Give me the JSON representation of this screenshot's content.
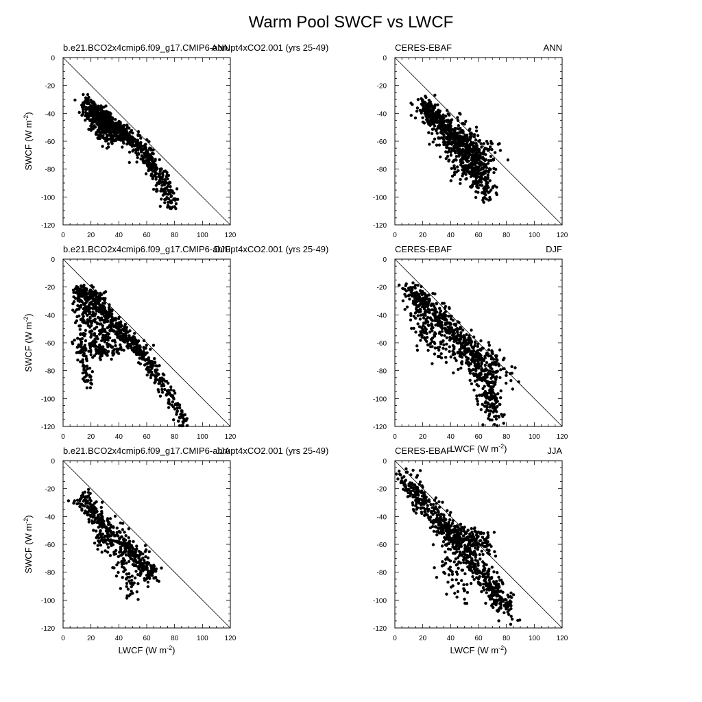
{
  "figure": {
    "title": "Warm Pool SWCF vs LWCF"
  },
  "axes_labels": {
    "x_main": "LWCF (W m",
    "y_main": "SWCF (W m",
    "exp": "-2",
    "close": ")"
  },
  "chart_data": [
    {
      "type": "scatter",
      "panel": "model-ann",
      "left_title": "b.e21.BCO2x4cmip6.f09_g17.CMIP6-abrupt4xCO2.001 (yrs 25-49)",
      "right_title": "ANN",
      "xlim": [
        0,
        120
      ],
      "ylim": [
        -120,
        0
      ],
      "xticks": [
        "0",
        "20",
        "40",
        "60",
        "80",
        "100",
        "120"
      ],
      "yticks": [
        "0",
        "-20",
        "-40",
        "-60",
        "-80",
        "-100",
        "-120"
      ],
      "reference_line": "y = -x",
      "x_label": false,
      "y_label": true,
      "clusters": [
        {
          "curve": [
            [
              16,
              -32
            ],
            [
              22,
              -38
            ],
            [
              30,
              -44
            ],
            [
              40,
              -52
            ],
            [
              50,
              -60
            ],
            [
              60,
              -72
            ],
            [
              70,
              -86
            ],
            [
              78,
              -106
            ]
          ],
          "spread": 3.0,
          "n": 650
        },
        {
          "curve": [
            [
              20,
              -40
            ],
            [
              28,
              -47
            ],
            [
              36,
              -52
            ],
            [
              45,
              -57
            ]
          ],
          "spread": 3.0,
          "n": 250
        },
        {
          "curve": [
            [
              24,
              -52
            ],
            [
              30,
              -58
            ],
            [
              40,
              -56
            ]
          ],
          "spread": 3.5,
          "n": 60
        }
      ]
    },
    {
      "type": "scatter",
      "panel": "obs-ann",
      "left_title": "CERES-EBAF",
      "right_title": "ANN",
      "xlim": [
        0,
        120
      ],
      "ylim": [
        -120,
        0
      ],
      "xticks": [
        "0",
        "20",
        "40",
        "60",
        "80",
        "100",
        "120"
      ],
      "yticks": [
        "0",
        "-20",
        "-40",
        "-60",
        "-80",
        "-100",
        "-120"
      ],
      "reference_line": "y = -x",
      "x_label": false,
      "y_label": false,
      "clusters": [
        {
          "curve": [
            [
              20,
              -35
            ],
            [
              26,
              -40
            ],
            [
              34,
              -48
            ],
            [
              42,
              -56
            ],
            [
              50,
              -64
            ],
            [
              56,
              -72
            ],
            [
              62,
              -82
            ],
            [
              66,
              -100
            ]
          ],
          "spread": 4.0,
          "n": 650
        },
        {
          "curve": [
            [
              30,
              -50
            ],
            [
              40,
              -62
            ],
            [
              48,
              -76
            ],
            [
              55,
              -86
            ]
          ],
          "spread": 5.0,
          "n": 150
        },
        {
          "curve": [
            [
              50,
              -55
            ],
            [
              60,
              -62
            ],
            [
              68,
              -70
            ]
          ],
          "spread": 5.5,
          "n": 90
        }
      ]
    },
    {
      "type": "scatter",
      "panel": "model-djf",
      "left_title": "b.e21.BCO2x4cmip6.f09_g17.CMIP6-abrupt4xCO2.001 (yrs 25-49)",
      "right_title": "DJF",
      "xlim": [
        0,
        120
      ],
      "ylim": [
        -120,
        0
      ],
      "xticks": [
        "0",
        "20",
        "40",
        "60",
        "80",
        "100",
        "120"
      ],
      "yticks": [
        "0",
        "-20",
        "-40",
        "-60",
        "-80",
        "-100",
        "-120"
      ],
      "reference_line": "y = -x",
      "x_label": false,
      "y_label": true,
      "clusters": [
        {
          "curve": [
            [
              10,
              -24
            ],
            [
              16,
              -23
            ],
            [
              24,
              -28
            ],
            [
              32,
              -38
            ],
            [
              40,
              -50
            ],
            [
              50,
              -60
            ],
            [
              58,
              -70
            ],
            [
              66,
              -82
            ],
            [
              76,
              -98
            ],
            [
              88,
              -118
            ]
          ],
          "spread": 2.5,
          "n": 520
        },
        {
          "curve": [
            [
              10,
              -28
            ],
            [
              12,
              -44
            ],
            [
              14,
              -62
            ],
            [
              16,
              -78
            ],
            [
              18,
              -92
            ]
          ],
          "spread": 2.0,
          "n": 90
        },
        {
          "curve": [
            [
              14,
              -30
            ],
            [
              18,
              -45
            ],
            [
              22,
              -60
            ],
            [
              26,
              -70
            ]
          ],
          "spread": 2.0,
          "n": 80
        },
        {
          "curve": [
            [
              18,
              -30
            ],
            [
              24,
              -45
            ],
            [
              30,
              -58
            ],
            [
              36,
              -64
            ]
          ],
          "spread": 2.0,
          "n": 80
        },
        {
          "curve": [
            [
              24,
              -32
            ],
            [
              32,
              -48
            ],
            [
              40,
              -56
            ],
            [
              48,
              -62
            ]
          ],
          "spread": 2.0,
          "n": 70
        },
        {
          "curve": [
            [
              10,
              -62
            ],
            [
              20,
              -66
            ],
            [
              30,
              -66
            ],
            [
              40,
              -66
            ]
          ],
          "spread": 2.5,
          "n": 70
        }
      ]
    },
    {
      "type": "scatter",
      "panel": "obs-djf",
      "left_title": "CERES-EBAF",
      "right_title": "DJF",
      "xlim": [
        0,
        120
      ],
      "ylim": [
        -120,
        0
      ],
      "xticks": [
        "0",
        "20",
        "40",
        "60",
        "80",
        "100",
        "120"
      ],
      "yticks": [
        "0",
        "-20",
        "-40",
        "-60",
        "-80",
        "-100",
        "-120"
      ],
      "reference_line": "y = -x",
      "x_label": true,
      "y_label": false,
      "clusters": [
        {
          "curve": [
            [
              10,
              -22
            ],
            [
              20,
              -30
            ],
            [
              30,
              -40
            ],
            [
              40,
              -50
            ],
            [
              50,
              -60
            ],
            [
              58,
              -72
            ],
            [
              64,
              -85
            ],
            [
              68,
              -100
            ],
            [
              72,
              -115
            ]
          ],
          "spread": 4.0,
          "n": 620
        },
        {
          "curve": [
            [
              15,
              -30
            ],
            [
              20,
              -45
            ],
            [
              25,
              -60
            ]
          ],
          "spread": 4.5,
          "n": 90
        },
        {
          "curve": [
            [
              55,
              -65
            ],
            [
              65,
              -72
            ],
            [
              75,
              -80
            ],
            [
              80,
              -84
            ]
          ],
          "spread": 5.0,
          "n": 110
        },
        {
          "curve": [
            [
              30,
              -60
            ],
            [
              40,
              -68
            ],
            [
              50,
              -75
            ]
          ],
          "spread": 5.0,
          "n": 60
        }
      ]
    },
    {
      "type": "scatter",
      "panel": "model-jja",
      "left_title": "b.e21.BCO2x4cmip6.f09_g17.CMIP6-abrupt4xCO2.001 (yrs 25-49)",
      "right_title": "JJA",
      "xlim": [
        0,
        120
      ],
      "ylim": [
        -120,
        0
      ],
      "xticks": [
        "0",
        "20",
        "40",
        "60",
        "80",
        "100",
        "120"
      ],
      "yticks": [
        "0",
        "-20",
        "-40",
        "-60",
        "-80",
        "-100",
        "-120"
      ],
      "reference_line": "y = -x",
      "x_label": true,
      "y_label": true,
      "clusters": [
        {
          "curve": [
            [
              12,
              -26
            ],
            [
              18,
              -32
            ],
            [
              26,
              -42
            ],
            [
              34,
              -50
            ],
            [
              42,
              -58
            ],
            [
              50,
              -66
            ],
            [
              58,
              -76
            ],
            [
              64,
              -82
            ]
          ],
          "spread": 3.5,
          "n": 420
        },
        {
          "curve": [
            [
              24,
              -50
            ],
            [
              32,
              -60
            ],
            [
              40,
              -72
            ],
            [
              46,
              -84
            ],
            [
              48,
              -100
            ]
          ],
          "spread": 3.5,
          "n": 90
        }
      ]
    },
    {
      "type": "scatter",
      "panel": "obs-jja",
      "left_title": "CERES-EBAF",
      "right_title": "JJA",
      "xlim": [
        0,
        120
      ],
      "ylim": [
        -120,
        0
      ],
      "xticks": [
        "0",
        "20",
        "40",
        "60",
        "80",
        "100",
        "120"
      ],
      "yticks": [
        "0",
        "-20",
        "-40",
        "-60",
        "-80",
        "-100",
        "-120"
      ],
      "reference_line": "y = -x",
      "x_label": true,
      "y_label": false,
      "clusters": [
        {
          "curve": [
            [
              8,
              -12
            ],
            [
              16,
              -24
            ],
            [
              26,
              -36
            ],
            [
              36,
              -46
            ],
            [
              44,
              -54
            ],
            [
              52,
              -66
            ],
            [
              60,
              -78
            ],
            [
              68,
              -90
            ],
            [
              76,
              -100
            ],
            [
              82,
              -108
            ]
          ],
          "spread": 4.0,
          "n": 620
        },
        {
          "curve": [
            [
              36,
              -50
            ],
            [
              44,
              -56
            ],
            [
              52,
              -54
            ],
            [
              60,
              -56
            ],
            [
              68,
              -62
            ]
          ],
          "spread": 4.0,
          "n": 160
        },
        {
          "curve": [
            [
              36,
              -60
            ],
            [
              42,
              -80
            ],
            [
              48,
              -100
            ]
          ],
          "spread": 5.0,
          "n": 60
        }
      ]
    }
  ]
}
